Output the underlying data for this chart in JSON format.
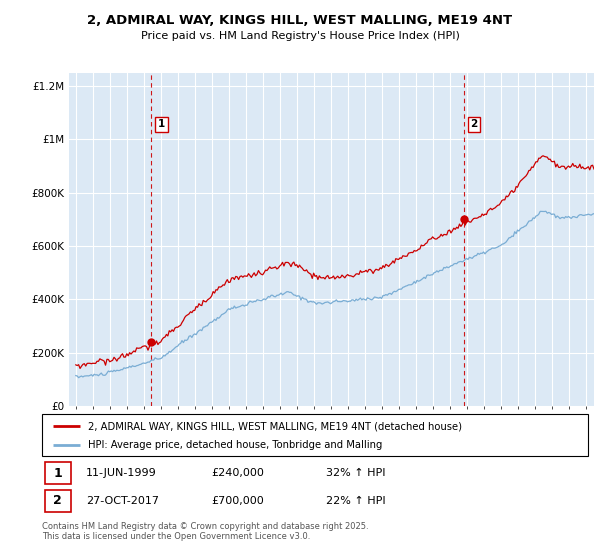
{
  "title": "2, ADMIRAL WAY, KINGS HILL, WEST MALLING, ME19 4NT",
  "subtitle": "Price paid vs. HM Land Registry's House Price Index (HPI)",
  "ylabel_ticks": [
    "£0",
    "£200K",
    "£400K",
    "£600K",
    "£800K",
    "£1M",
    "£1.2M"
  ],
  "ytick_values": [
    0,
    200000,
    400000,
    600000,
    800000,
    1000000,
    1200000
  ],
  "ylim": [
    0,
    1250000
  ],
  "xlim_start": 1994.6,
  "xlim_end": 2025.5,
  "transaction1": {
    "date_year": 1999.44,
    "price": 240000,
    "label": "1",
    "date_str": "11-JUN-1999",
    "pct": "32%"
  },
  "transaction2": {
    "date_year": 2017.82,
    "price": 700000,
    "label": "2",
    "date_str": "27-OCT-2017",
    "pct": "22%"
  },
  "legend_line1": "2, ADMIRAL WAY, KINGS HILL, WEST MALLING, ME19 4NT (detached house)",
  "legend_line2": "HPI: Average price, detached house, Tonbridge and Malling",
  "footer": "Contains HM Land Registry data © Crown copyright and database right 2025.\nThis data is licensed under the Open Government Licence v3.0.",
  "line_color_red": "#cc0000",
  "line_color_blue": "#7aadd4",
  "plot_bg_color": "#dce9f5",
  "background_color": "#ffffff",
  "grid_color": "#ffffff"
}
